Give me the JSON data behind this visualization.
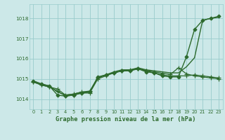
{
  "title": "Graphe pression niveau de la mer (hPa)",
  "background_color": "#cce8e8",
  "grid_color": "#99cccc",
  "line_color": "#2d6a2d",
  "xlim": [
    -0.5,
    23.5
  ],
  "ylim": [
    1013.5,
    1018.7
  ],
  "yticks": [
    1014,
    1015,
    1016,
    1017,
    1018
  ],
  "xticks": [
    0,
    1,
    2,
    3,
    4,
    5,
    6,
    7,
    8,
    9,
    10,
    11,
    12,
    13,
    14,
    15,
    16,
    17,
    18,
    19,
    20,
    21,
    22,
    23
  ],
  "series": [
    {
      "x": [
        0,
        1,
        2,
        3,
        4,
        5,
        6,
        7,
        8,
        9,
        10,
        11,
        12,
        13,
        14,
        15,
        16,
        17,
        18,
        19,
        20,
        21,
        22,
        23
      ],
      "y": [
        1014.9,
        1014.75,
        1014.65,
        1014.2,
        1014.15,
        1014.2,
        1014.3,
        1014.35,
        1015.1,
        1015.2,
        1015.3,
        1015.4,
        1015.4,
        1015.5,
        1015.35,
        1015.3,
        1015.15,
        1015.1,
        1015.1,
        1016.1,
        1017.45,
        1017.9,
        1018.0,
        1018.1
      ],
      "marker": "D",
      "markersize": 2.5,
      "linewidth": 1.0
    },
    {
      "x": [
        0,
        1,
        2,
        3,
        4,
        5,
        6,
        7,
        8,
        9,
        10,
        11,
        12,
        13,
        14,
        15,
        16,
        17,
        18,
        19,
        20,
        21,
        22,
        23
      ],
      "y": [
        1014.85,
        1014.7,
        1014.6,
        1014.5,
        1014.2,
        1014.25,
        1014.35,
        1014.4,
        1015.05,
        1015.2,
        1015.3,
        1015.4,
        1015.45,
        1015.5,
        1015.4,
        1015.3,
        1015.2,
        1015.15,
        1015.15,
        1015.15,
        1015.2,
        1015.15,
        1015.1,
        1015.05
      ],
      "marker": "+",
      "markersize": 4,
      "linewidth": 0.9
    },
    {
      "x": [
        0,
        1,
        2,
        3,
        4,
        5,
        6,
        7,
        8,
        9,
        10,
        11,
        12,
        13,
        14,
        15,
        16,
        17,
        18,
        19,
        20,
        21,
        22,
        23
      ],
      "y": [
        1014.9,
        1014.75,
        1014.65,
        1014.35,
        1014.2,
        1014.25,
        1014.35,
        1014.35,
        1015.05,
        1015.2,
        1015.35,
        1015.45,
        1015.45,
        1015.55,
        1015.45,
        1015.4,
        1015.35,
        1015.3,
        1015.3,
        1015.6,
        1016.05,
        1017.9,
        1018.0,
        1018.05
      ],
      "marker": null,
      "markersize": 0,
      "linewidth": 1.0
    },
    {
      "x": [
        0,
        1,
        2,
        3,
        4,
        5,
        6,
        7,
        8,
        9,
        10,
        11,
        12,
        13,
        14,
        15,
        16,
        17,
        18,
        19,
        20,
        21,
        22,
        23
      ],
      "y": [
        1014.85,
        1014.7,
        1014.6,
        1014.4,
        1014.15,
        1014.2,
        1014.3,
        1014.3,
        1015.0,
        1015.15,
        1015.3,
        1015.4,
        1015.42,
        1015.5,
        1015.42,
        1015.35,
        1015.28,
        1015.22,
        1015.55,
        1015.25,
        1015.15,
        1015.1,
        1015.05,
        1015.0
      ],
      "marker": "+",
      "markersize": 4,
      "linewidth": 0.9
    }
  ]
}
